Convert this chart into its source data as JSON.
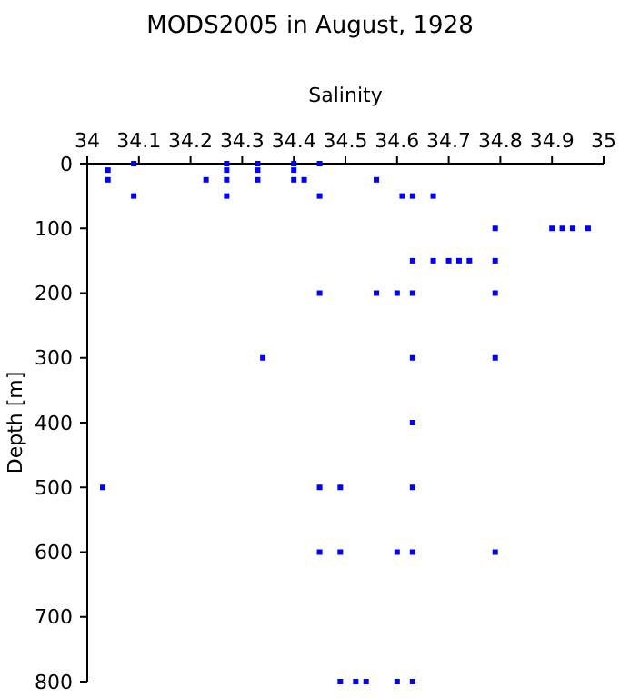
{
  "chart_data": {
    "type": "scatter",
    "title": "MODS2005 in August, 1928",
    "xlabel": "Salinity",
    "ylabel": "Depth [m]",
    "marker": "square",
    "grid": false,
    "x": [
      34.09,
      34.27,
      34.33,
      34.4,
      34.45,
      34.04,
      34.27,
      34.33,
      34.4,
      34.04,
      34.23,
      34.27,
      34.33,
      34.4,
      34.42,
      34.56,
      34.09,
      34.27,
      34.45,
      34.61,
      34.63,
      34.67,
      34.79,
      34.9,
      34.92,
      34.94,
      34.97,
      34.63,
      34.67,
      34.7,
      34.72,
      34.74,
      34.79,
      34.45,
      34.56,
      34.6,
      34.63,
      34.79,
      34.34,
      34.63,
      34.79,
      34.63,
      34.03,
      34.45,
      34.49,
      34.63,
      34.45,
      34.49,
      34.6,
      34.63,
      34.79,
      34.49,
      34.52,
      34.54,
      34.6,
      34.63
    ],
    "values": [
      0,
      0,
      0,
      0,
      0,
      10,
      10,
      10,
      10,
      25,
      25,
      25,
      25,
      25,
      25,
      25,
      50,
      50,
      50,
      50,
      50,
      50,
      100,
      100,
      100,
      100,
      100,
      150,
      150,
      150,
      150,
      150,
      150,
      200,
      200,
      200,
      200,
      200,
      300,
      300,
      300,
      400,
      500,
      500,
      500,
      500,
      600,
      600,
      600,
      600,
      600,
      800,
      800,
      800,
      800,
      800
    ],
    "color": "#0000ff",
    "xlim": [
      34,
      35
    ],
    "xticks": [
      34,
      34.1,
      34.2,
      34.3,
      34.4,
      34.5,
      34.6,
      34.7,
      34.8,
      34.9,
      35
    ],
    "ylim": [
      800,
      0
    ],
    "yticks": [
      0,
      100,
      200,
      300,
      400,
      500,
      600,
      700,
      800
    ]
  }
}
